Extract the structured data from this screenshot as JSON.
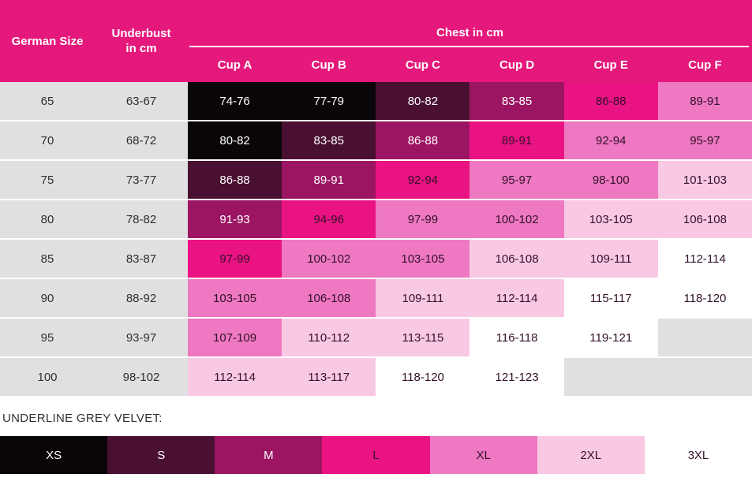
{
  "header": {
    "chest_group_label": "Chest in cm"
  },
  "colors": {
    "header_bg": "#E5187B",
    "header_text": "#FFFFFF",
    "row_label_bg": "#E1E0E0",
    "row_label_text": "#2F2E33",
    "cell_dark_text": "#33102A",
    "separator": "#FFFFFF",
    "palette": {
      "black": "#0A0509",
      "maroon": "#4A1032",
      "dark_magenta": "#9B1563",
      "bright_magenta": "#EA1383",
      "medium_pink": "#EE78C1",
      "light_pink": "#F9C9E4",
      "white": "#FFFFFF",
      "grey": "#E1E0E0"
    },
    "light_text_on": [
      "black",
      "maroon",
      "dark_magenta"
    ]
  },
  "chart_data": {
    "type": "table",
    "title": "Chest in cm",
    "columns": [
      "German Size",
      "Underbust in cm",
      "Cup A",
      "Cup B",
      "Cup C",
      "Cup D",
      "Cup E",
      "Cup F"
    ],
    "rows": [
      {
        "size": "65",
        "underbust": "63-67",
        "cups": [
          "74-76",
          "77-79",
          "80-82",
          "83-85",
          "86-88",
          "89-91"
        ],
        "cup_colors": [
          "black",
          "black",
          "maroon",
          "dark_magenta",
          "bright_magenta",
          "medium_pink"
        ]
      },
      {
        "size": "70",
        "underbust": "68-72",
        "cups": [
          "80-82",
          "83-85",
          "86-88",
          "89-91",
          "92-94",
          "95-97"
        ],
        "cup_colors": [
          "black",
          "maroon",
          "dark_magenta",
          "bright_magenta",
          "medium_pink",
          "medium_pink"
        ]
      },
      {
        "size": "75",
        "underbust": "73-77",
        "cups": [
          "86-88",
          "89-91",
          "92-94",
          "95-97",
          "98-100",
          "101-103"
        ],
        "cup_colors": [
          "maroon",
          "dark_magenta",
          "bright_magenta",
          "medium_pink",
          "medium_pink",
          "light_pink"
        ]
      },
      {
        "size": "80",
        "underbust": "78-82",
        "cups": [
          "91-93",
          "94-96",
          "97-99",
          "100-102",
          "103-105",
          "106-108"
        ],
        "cup_colors": [
          "dark_magenta",
          "bright_magenta",
          "medium_pink",
          "medium_pink",
          "light_pink",
          "light_pink"
        ]
      },
      {
        "size": "85",
        "underbust": "83-87",
        "cups": [
          "97-99",
          "100-102",
          "103-105",
          "106-108",
          "109-111",
          "112-114"
        ],
        "cup_colors": [
          "bright_magenta",
          "medium_pink",
          "medium_pink",
          "light_pink",
          "light_pink",
          "white"
        ]
      },
      {
        "size": "90",
        "underbust": "88-92",
        "cups": [
          "103-105",
          "106-108",
          "109-111",
          "112-114",
          "115-117",
          "118-120"
        ],
        "cup_colors": [
          "medium_pink",
          "medium_pink",
          "light_pink",
          "light_pink",
          "white",
          "white"
        ]
      },
      {
        "size": "95",
        "underbust": "93-97",
        "cups": [
          "107-109",
          "110-112",
          "113-115",
          "116-118",
          "119-121",
          ""
        ],
        "cup_colors": [
          "medium_pink",
          "light_pink",
          "light_pink",
          "white",
          "white",
          "grey"
        ]
      },
      {
        "size": "100",
        "underbust": "98-102",
        "cups": [
          "112-114",
          "113-117",
          "118-120",
          "121-123",
          "",
          ""
        ],
        "cup_colors": [
          "light_pink",
          "light_pink",
          "white",
          "white",
          "grey",
          "grey"
        ]
      }
    ]
  },
  "legend": {
    "label": "UNDERLINE GREY VELVET:",
    "sizes": [
      {
        "label": "XS",
        "color": "black"
      },
      {
        "label": "S",
        "color": "maroon"
      },
      {
        "label": "M",
        "color": "dark_magenta"
      },
      {
        "label": "L",
        "color": "bright_magenta"
      },
      {
        "label": "XL",
        "color": "medium_pink"
      },
      {
        "label": "2XL",
        "color": "light_pink"
      },
      {
        "label": "3XL",
        "color": "white"
      }
    ]
  }
}
